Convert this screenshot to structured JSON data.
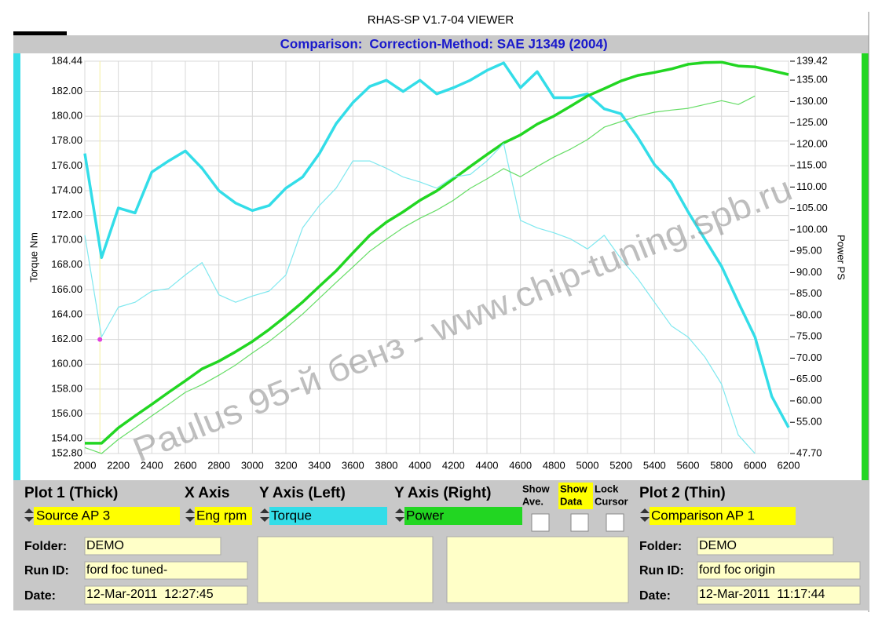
{
  "window": {
    "title": "RHAS-SP V1.7-04  VIEWER",
    "comparison": "Comparison:",
    "method": "Correction-Method: SAE J1349 (2004)"
  },
  "chart_data": {
    "type": "line",
    "ylabel": "Torque Nm",
    "y2label": "Power PS",
    "annotation": "Paulus  95-й бенз - www.chip-tuning.spb.ru",
    "x": [
      2000,
      2100,
      2200,
      2300,
      2400,
      2500,
      2600,
      2700,
      2800,
      2900,
      3000,
      3100,
      3200,
      3300,
      3400,
      3500,
      3600,
      3700,
      3800,
      3900,
      4000,
      4100,
      4200,
      4300,
      4400,
      4500,
      4600,
      4700,
      4800,
      4900,
      5000,
      5100,
      5200,
      5300,
      5400,
      5500,
      5600,
      5700,
      5800,
      5900,
      6000,
      6100,
      6200
    ],
    "xlim": [
      2000,
      6200
    ],
    "xticks": [
      2000,
      2200,
      2400,
      2600,
      2800,
      3000,
      3200,
      3400,
      3600,
      3800,
      4000,
      4200,
      4400,
      4600,
      4800,
      5000,
      5200,
      5400,
      5600,
      5800,
      6000,
      6200
    ],
    "ylim": [
      152.8,
      184.44
    ],
    "yticks": [
      {
        "value": 152.8,
        "label": "152.80"
      },
      {
        "value": 154,
        "label": "154.00"
      },
      {
        "value": 156,
        "label": "156.00"
      },
      {
        "value": 158,
        "label": "158.00"
      },
      {
        "value": 160,
        "label": "160.00"
      },
      {
        "value": 162,
        "label": "162.00"
      },
      {
        "value": 164,
        "label": "164.00"
      },
      {
        "value": 166,
        "label": "166.00"
      },
      {
        "value": 168,
        "label": "168.00"
      },
      {
        "value": 170,
        "label": "170.00"
      },
      {
        "value": 172,
        "label": "172.00"
      },
      {
        "value": 174,
        "label": "174.00"
      },
      {
        "value": 176,
        "label": "176.00"
      },
      {
        "value": 178,
        "label": "178.00"
      },
      {
        "value": 180,
        "label": "180.00"
      },
      {
        "value": 182,
        "label": "182.00"
      },
      {
        "value": 184.44,
        "label": "184.44"
      }
    ],
    "y2lim": [
      47.7,
      139.42
    ],
    "y2ticks": [
      {
        "value": 47.7,
        "label": "47.70"
      },
      {
        "value": 55,
        "label": "55.00"
      },
      {
        "value": 60,
        "label": "60.00"
      },
      {
        "value": 65,
        "label": "65.00"
      },
      {
        "value": 70,
        "label": "70.00"
      },
      {
        "value": 75,
        "label": "75.00"
      },
      {
        "value": 80,
        "label": "80.00"
      },
      {
        "value": 85,
        "label": "85.00"
      },
      {
        "value": 90,
        "label": "90.00"
      },
      {
        "value": 95,
        "label": "95.00"
      },
      {
        "value": 100,
        "label": "100.00"
      },
      {
        "value": 105,
        "label": "105.00"
      },
      {
        "value": 110,
        "label": "110.00"
      },
      {
        "value": 115,
        "label": "115.00"
      },
      {
        "value": 120,
        "label": "120.00"
      },
      {
        "value": 125,
        "label": "125.00"
      },
      {
        "value": 130,
        "label": "130.00"
      },
      {
        "value": 135,
        "label": "135.00"
      },
      {
        "value": 139.42,
        "label": "139.42"
      }
    ],
    "grid": true,
    "series": [
      {
        "color": "#33dde8",
        "line_width": 3.5,
        "values": [
          177.0,
          168.6,
          172.6,
          172.2,
          175.5,
          176.4,
          177.2,
          175.8,
          174.0,
          173.0,
          172.4,
          172.8,
          174.2,
          175.1,
          177.0,
          179.4,
          181.1,
          182.4,
          182.9,
          182.0,
          182.9,
          181.8,
          182.3,
          182.9,
          183.7,
          184.3,
          182.3,
          183.6,
          181.5,
          181.5,
          181.8,
          180.6,
          180.2,
          178.3,
          176.1,
          174.7,
          172.3,
          170.1,
          167.9,
          165.0,
          162.2,
          157.4,
          154.9
        ]
      },
      {
        "color": "#22d622",
        "line_width": 3.5,
        "axis": "y2",
        "values": [
          50.1,
          50.1,
          53.7,
          56.5,
          59.2,
          62.0,
          64.7,
          67.5,
          69.3,
          71.5,
          73.9,
          76.7,
          79.8,
          83.1,
          86.8,
          90.4,
          94.6,
          98.7,
          101.8,
          104.2,
          106.9,
          109.1,
          111.9,
          114.8,
          117.6,
          120.3,
          122.2,
          124.7,
          126.6,
          128.9,
          131.3,
          133.0,
          134.8,
          136.1,
          136.8,
          137.6,
          138.7,
          139.1,
          139.2,
          138.3,
          138.1,
          137.2,
          136.3
        ]
      },
      {
        "color": "#7fe8ef",
        "line_width": 1.2,
        "values": [
          170.4,
          162.2,
          164.6,
          165.0,
          165.9,
          166.1,
          167.2,
          168.2,
          165.6,
          165.0,
          165.5,
          165.9,
          167.2,
          171.0,
          172.8,
          174.2,
          176.4,
          176.4,
          175.8,
          175.1,
          174.7,
          174.2,
          175.1,
          175.3,
          176.4,
          177.8,
          171.6,
          171.0,
          170.6,
          170.1,
          169.3,
          170.4,
          168.5,
          166.9,
          165.0,
          163.1,
          162.2,
          160.6,
          158.4,
          154.3,
          152.8,
          null,
          null
        ]
      },
      {
        "color": "#66dd66",
        "line_width": 1.2,
        "axis": "y2",
        "values": [
          49.1,
          47.7,
          51.0,
          53.7,
          56.5,
          59.2,
          62.0,
          63.8,
          66.0,
          68.4,
          71.2,
          73.9,
          77.0,
          80.3,
          84.0,
          87.7,
          91.3,
          95.0,
          97.8,
          100.5,
          102.7,
          104.6,
          106.9,
          109.7,
          111.9,
          114.3,
          112.4,
          114.8,
          117.0,
          118.9,
          121.1,
          124.0,
          125.3,
          126.6,
          127.5,
          128.0,
          128.4,
          129.3,
          130.2,
          129.3,
          131.3,
          null,
          null
        ]
      }
    ],
    "cursor": {
      "x": 2090,
      "y": 162.0,
      "color": "#e040e0"
    }
  },
  "panel": {
    "plot1": "Plot 1 (Thick)",
    "xaxis": "X Axis",
    "yleft": "Y Axis (Left)",
    "yright": "Y Axis (Right)",
    "show_ave": [
      "Show",
      "Ave."
    ],
    "show_data": [
      "Show",
      "Data"
    ],
    "lock_cursor": [
      "Lock",
      "Cursor"
    ],
    "plot2": "Plot 2 (Thin)",
    "source": "Source AP 3",
    "xsel": "Eng rpm",
    "ysel_left": "Torque",
    "ysel_right": "Power",
    "comparison": "Comparison AP 1",
    "left": {
      "folder_label": "Folder:",
      "folder": "DEMO",
      "run_label": "Run ID:",
      "run": "ford foc tuned-",
      "date_label": "Date:",
      "date": "12-Mar-2011  12:27:45"
    },
    "right": {
      "folder_label": "Folder:",
      "folder": "DEMO",
      "run_label": "Run ID:",
      "run": "ford foc origin",
      "date_label": "Date:",
      "date": "12-Mar-2011  11:17:44"
    }
  }
}
